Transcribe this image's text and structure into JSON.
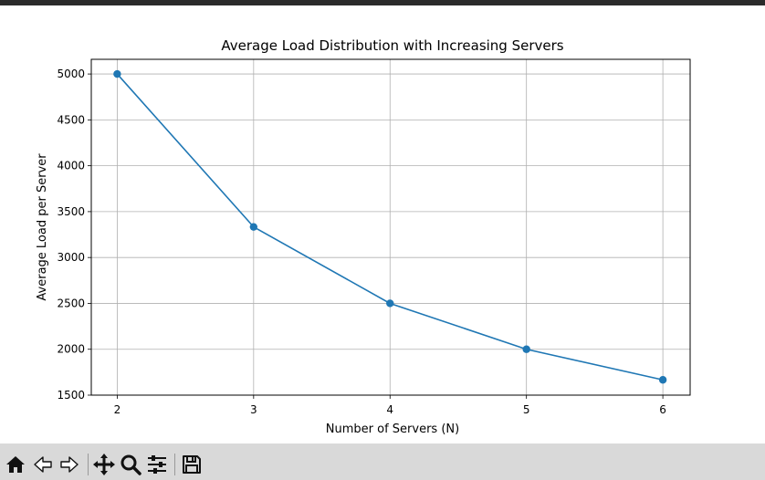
{
  "chart_data": {
    "type": "line",
    "title": "Average Load Distribution with Increasing Servers",
    "xlabel": "Number of Servers (N)",
    "ylabel": "Average Load per Server",
    "x": [
      2,
      3,
      4,
      5,
      6
    ],
    "series": [
      {
        "values": [
          5000,
          3333.33,
          2500,
          2000,
          1666.67
        ]
      }
    ],
    "xticks": [
      "2",
      "3",
      "4",
      "5",
      "6"
    ],
    "yticks": [
      "1500",
      "2000",
      "2500",
      "3000",
      "3500",
      "4000",
      "4500",
      "5000"
    ],
    "xlim": [
      1.81,
      6.2
    ],
    "ylim": [
      1500,
      5160
    ],
    "grid": true,
    "marker": "circle",
    "line_color": "#1f77b4"
  },
  "toolbar": {
    "buttons": [
      "home-icon",
      "back-icon",
      "forward-icon",
      "pan-icon",
      "zoom-icon",
      "configure-icon",
      "save-icon"
    ]
  }
}
